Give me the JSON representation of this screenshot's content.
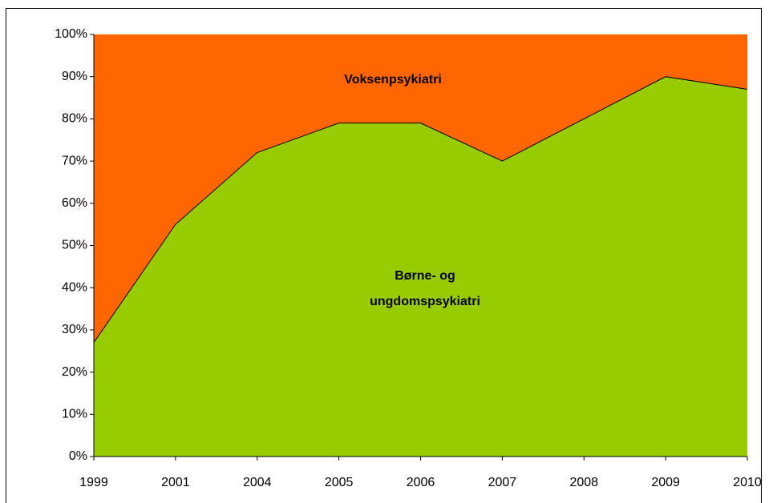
{
  "chart_data": {
    "type": "stacked-area-100",
    "categories": [
      "1999",
      "2001",
      "2004",
      "2005",
      "2006",
      "2007",
      "2008",
      "2009",
      "2010"
    ],
    "series": [
      {
        "name": "Børne- og ungdomspsykiatri",
        "color": "#99cc00",
        "values": [
          27,
          55,
          72,
          79,
          79,
          70,
          80,
          90,
          87
        ]
      },
      {
        "name": "Voksenpsykiatri",
        "color": "#ff6600",
        "values": [
          73,
          45,
          28,
          21,
          21,
          30,
          20,
          10,
          13
        ]
      }
    ],
    "ylim": [
      0,
      100
    ],
    "yticks": [
      {
        "value": 0,
        "label": "0%"
      },
      {
        "value": 10,
        "label": "10%"
      },
      {
        "value": 20,
        "label": "20%"
      },
      {
        "value": 30,
        "label": "30%"
      },
      {
        "value": 40,
        "label": "40%"
      },
      {
        "value": 50,
        "label": "50%"
      },
      {
        "value": 60,
        "label": "60%"
      },
      {
        "value": 70,
        "label": "70%"
      },
      {
        "value": 80,
        "label": "80%"
      },
      {
        "value": 90,
        "label": "90%"
      },
      {
        "value": 100,
        "label": "100%"
      }
    ],
    "grid": false
  }
}
